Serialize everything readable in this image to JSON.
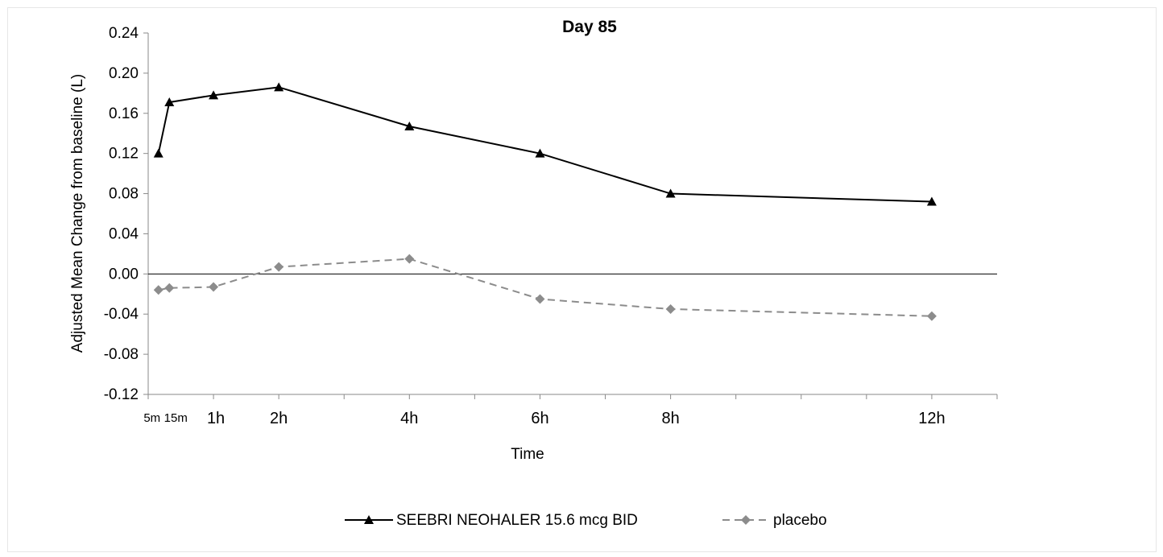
{
  "chart_data": {
    "type": "line",
    "title": "Day 85",
    "xlabel": "Time",
    "ylabel": "Adjusted Mean Change from baseline (L)",
    "ylim": [
      -0.12,
      0.24
    ],
    "y_ticks": [
      "0.24",
      "0.20",
      "0.16",
      "0.12",
      "0.08",
      "0.04",
      "0.00",
      "-0.04",
      "-0.08",
      "-0.12"
    ],
    "x_tick_labels": [
      {
        "label": "5m",
        "hours": 0.0833
      },
      {
        "label": "15m",
        "hours": 0.25
      },
      {
        "label": "1h",
        "hours": 1
      },
      {
        "label": "2h",
        "hours": 2
      },
      {
        "label": "4h",
        "hours": 4
      },
      {
        "label": "6h",
        "hours": 6
      },
      {
        "label": "8h",
        "hours": 8
      },
      {
        "label": "12h",
        "hours": 12
      }
    ],
    "x_hours": [
      0.0833,
      0.25,
      1,
      2,
      4,
      6,
      8,
      12
    ],
    "series": [
      {
        "name": "SEEBRI NEOHALER 15.6 mcg BID",
        "color": "#000000",
        "marker": "triangle",
        "dash": "solid",
        "values": [
          0.12,
          0.171,
          0.178,
          0.186,
          0.147,
          0.12,
          0.08,
          0.072
        ]
      },
      {
        "name": "placebo",
        "color": "#8c8c8c",
        "marker": "diamond",
        "dash": "dashed",
        "values": [
          -0.016,
          -0.014,
          -0.013,
          0.007,
          0.015,
          -0.025,
          -0.035,
          -0.042
        ]
      }
    ],
    "grid": false,
    "legend_position": "bottom-center"
  }
}
